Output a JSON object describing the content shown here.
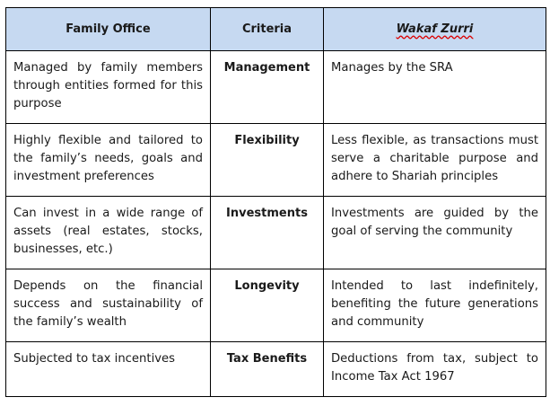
{
  "headers": [
    "Family Office",
    "Criteria",
    "Wakaf Zurri"
  ],
  "rows": [
    {
      "family_office": "Managed by family members through entities formed for this purpose",
      "criteria": "Management",
      "wakaf_zurri": "Manages by the SRA"
    },
    {
      "family_office": "Highly flexible and tailored to the family’s needs, goals and investment preferences",
      "criteria": "Flexibility",
      "wakaf_zurri": "Less flexible, as transactions must serve a charitable purpose and adhere to Shariah principles"
    },
    {
      "family_office": "Can invest in a wide range of assets (real estates, stocks, businesses, etc.)",
      "criteria": "Investments",
      "wakaf_zurri": "Investments are guided by the goal of serving the community"
    },
    {
      "family_office": "Depends on the financial success and sustainability of the family’s wealth",
      "criteria": "Longevity",
      "wakaf_zurri": "Intended to last indefinitely, benefiting the future generations and community"
    },
    {
      "family_office": "Subjected to tax incentives",
      "criteria": "Tax Benefits",
      "wakaf_zurri": "Deductions from tax, subject to Income Tax Act 1967"
    }
  ],
  "colors": {
    "header_bg": "#c6d9f1",
    "spellcheck_underline": "#dd0000"
  }
}
